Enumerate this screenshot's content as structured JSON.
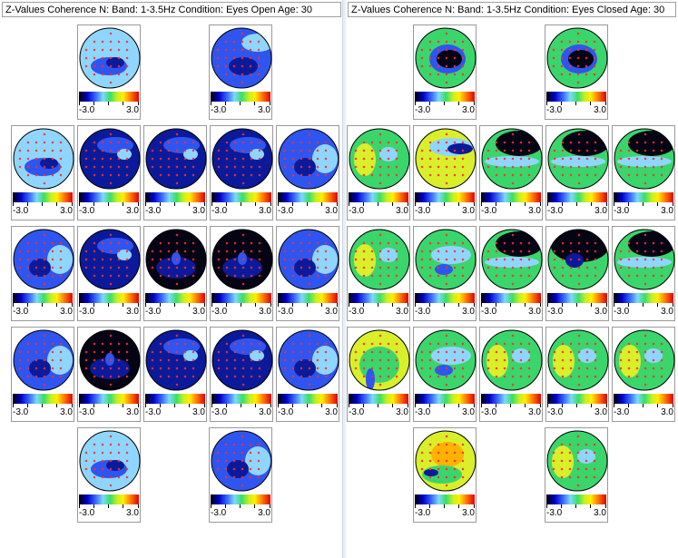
{
  "colorscale": {
    "min_label": "-3.0",
    "max_label": "3.0"
  },
  "panels": [
    {
      "title": "Z-Values Coherence N: Band:  1-3.5Hz  Condition: Eyes Open  Age:  30",
      "rows": [
        [
          "light",
          "mixed-dark"
        ],
        [
          "light",
          "dark",
          "dark",
          "dark",
          "mixed"
        ],
        [
          "mixed",
          "dark",
          "very-dark",
          "very-dark",
          "mixed"
        ],
        [
          "mixed",
          "very-dark",
          "dark",
          "dark",
          "mixed"
        ],
        [
          "light",
          "mixed"
        ]
      ]
    },
    {
      "title": "Z-Values Coherence N: Band:  1-3.5Hz  Condition: Eyes Closed  Age:  30",
      "rows": [
        [
          "green-dark-center",
          "green-dark-center"
        ],
        [
          "green",
          "yellow-green",
          "green-dark-top",
          "green-dark-top",
          "green-dark-top"
        ],
        [
          "green",
          "green-light",
          "green-dark-top",
          "green-very-dark",
          "green-dark-top"
        ],
        [
          "green-yellow",
          "green-light",
          "green",
          "green",
          "green"
        ],
        [
          "yellow",
          "green"
        ]
      ]
    }
  ],
  "palette": {
    "very-dark": "#040414",
    "dark": "#0a1a9a",
    "mid-blue": "#2f55f0",
    "light-blue": "#8fd6ff",
    "green": "#3ad66b",
    "yellow": "#d9ef2a",
    "orange": "#ffb300",
    "electrode": "#ff2a2a"
  }
}
